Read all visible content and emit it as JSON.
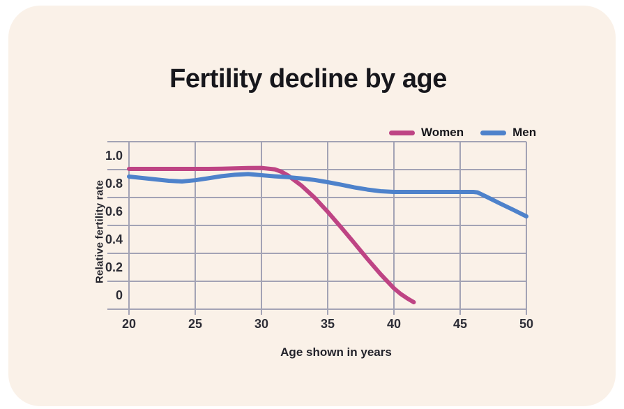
{
  "title": "Fertility decline by age",
  "colors": {
    "card_background": "#FAF1E8",
    "page_background": "#FFFFFF",
    "title_text": "#17171C",
    "tick_text": "#2D2D36",
    "grid": "#A3A3B5"
  },
  "chart_data": {
    "type": "line",
    "title": "Fertility decline by age",
    "xlabel": "Age shown in years",
    "ylabel": "Relative fertility rate",
    "xlim": [
      20,
      50
    ],
    "ylim": [
      -0.1,
      1.1
    ],
    "x_ticks": [
      20,
      25,
      30,
      35,
      40,
      45,
      50
    ],
    "y_ticks": [
      {
        "value": 1.0,
        "label": "1.0"
      },
      {
        "value": 0.8,
        "label": "0.8"
      },
      {
        "value": 0.6,
        "label": "0.6"
      },
      {
        "value": 0.4,
        "label": "0.4"
      },
      {
        "value": 0.2,
        "label": "0.2"
      },
      {
        "value": 0.0,
        "label": "0"
      }
    ],
    "grid": {
      "horizontal_from": -0.1,
      "horizontal_to": 1.1,
      "horizontal_step": 0.2,
      "vertical_at_x_ticks": true,
      "color": "#A3A3B5"
    },
    "legend_position": "top-right",
    "series": [
      {
        "name": "Women",
        "color": "#BE4484",
        "points": [
          [
            20,
            0.905
          ],
          [
            21,
            0.905
          ],
          [
            22,
            0.905
          ],
          [
            23,
            0.905
          ],
          [
            24,
            0.905
          ],
          [
            25,
            0.905
          ],
          [
            26,
            0.905
          ],
          [
            27,
            0.906
          ],
          [
            28,
            0.909
          ],
          [
            29,
            0.911
          ],
          [
            30,
            0.912
          ],
          [
            31,
            0.902
          ],
          [
            31.5,
            0.885
          ],
          [
            32,
            0.858
          ],
          [
            33,
            0.787
          ],
          [
            34,
            0.7
          ],
          [
            35,
            0.598
          ],
          [
            36,
            0.488
          ],
          [
            37,
            0.375
          ],
          [
            38,
            0.26
          ],
          [
            39,
            0.15
          ],
          [
            40,
            0.05
          ],
          [
            40.5,
            0.01
          ],
          [
            41,
            -0.022
          ],
          [
            41.5,
            -0.05
          ]
        ]
      },
      {
        "name": "Men",
        "color": "#4E82CB",
        "points": [
          [
            20,
            0.85
          ],
          [
            21,
            0.84
          ],
          [
            22,
            0.83
          ],
          [
            23,
            0.82
          ],
          [
            24,
            0.815
          ],
          [
            25,
            0.824
          ],
          [
            26,
            0.838
          ],
          [
            27,
            0.853
          ],
          [
            28,
            0.863
          ],
          [
            29,
            0.868
          ],
          [
            30,
            0.86
          ],
          [
            31,
            0.852
          ],
          [
            32,
            0.846
          ],
          [
            33,
            0.837
          ],
          [
            34,
            0.826
          ],
          [
            35,
            0.81
          ],
          [
            36,
            0.792
          ],
          [
            37,
            0.773
          ],
          [
            38,
            0.757
          ],
          [
            39,
            0.745
          ],
          [
            40,
            0.74
          ],
          [
            41,
            0.74
          ],
          [
            42,
            0.74
          ],
          [
            43,
            0.74
          ],
          [
            44,
            0.74
          ],
          [
            45,
            0.74
          ],
          [
            46,
            0.74
          ],
          [
            46.3,
            0.737
          ],
          [
            47,
            0.705
          ],
          [
            48,
            0.658
          ],
          [
            49,
            0.612
          ],
          [
            50,
            0.565
          ]
        ]
      }
    ]
  }
}
